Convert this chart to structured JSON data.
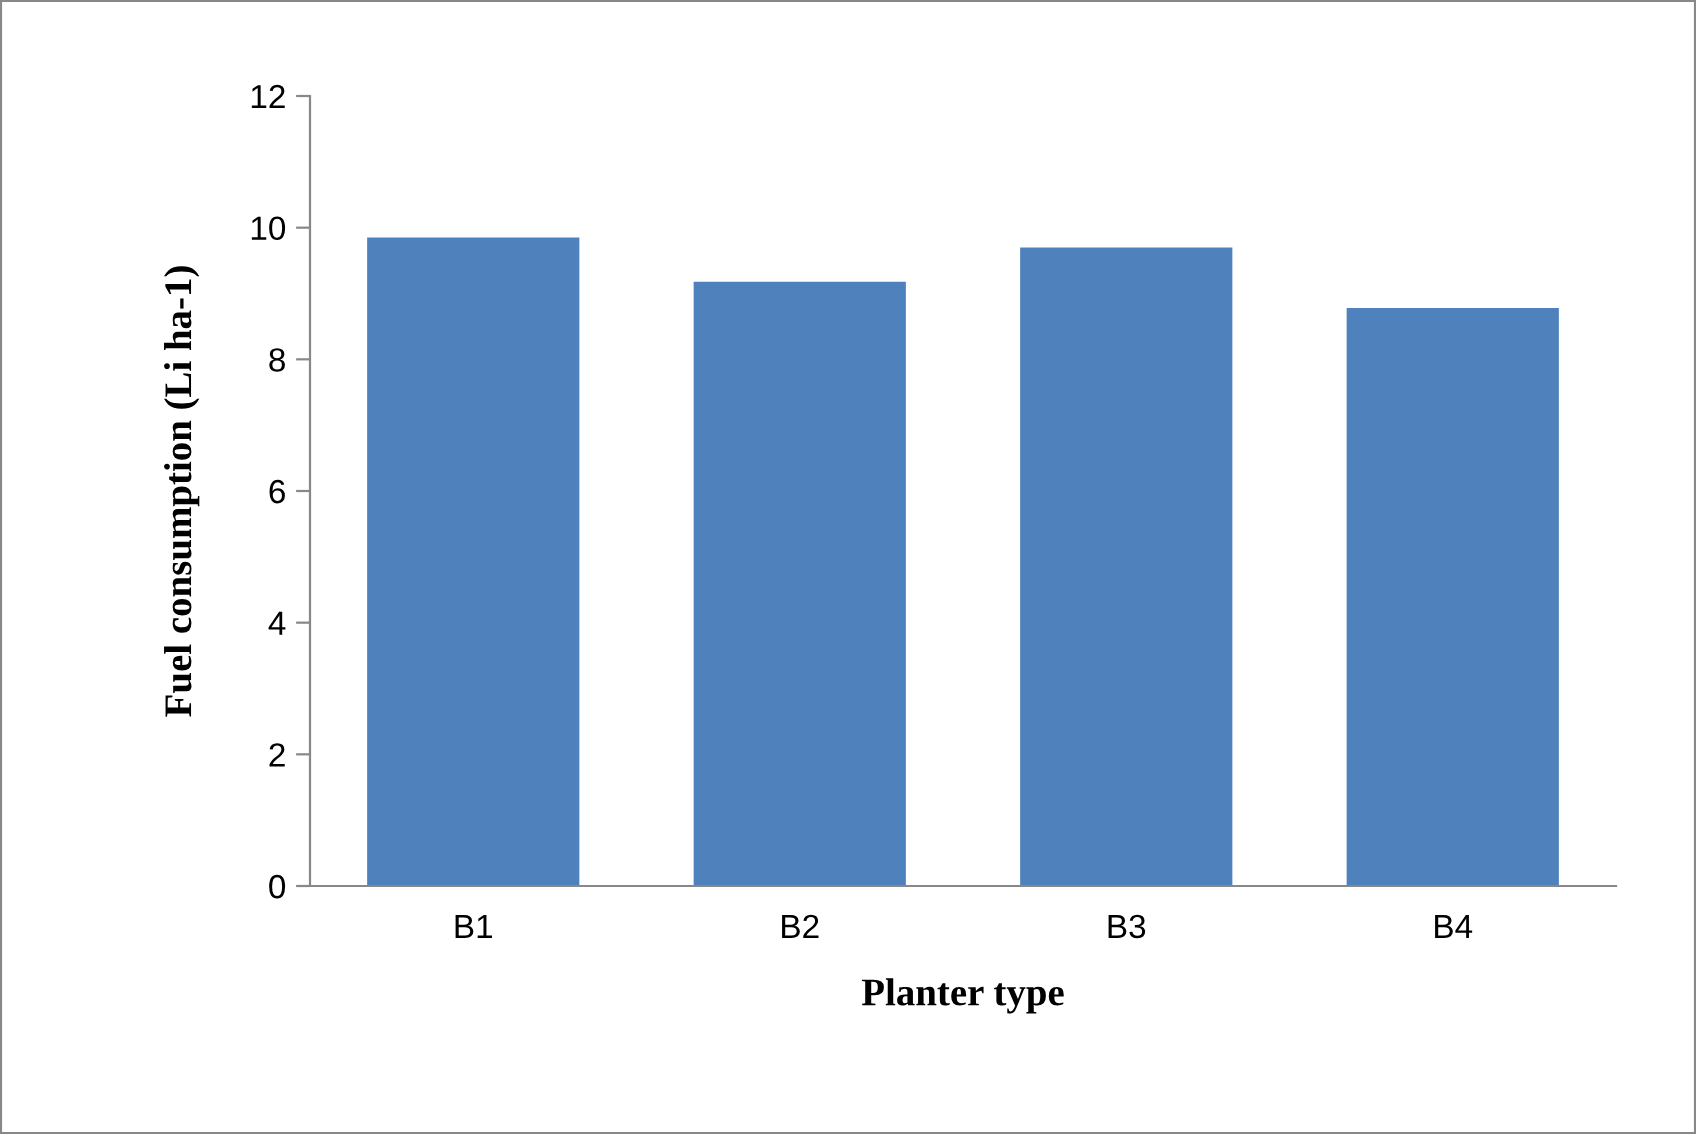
{
  "chart_data": {
    "type": "bar",
    "xlabel": "Planter type",
    "ylabel": "Fuel consumption (Li ha-1)",
    "categories": [
      "B1",
      "B2",
      "B3",
      "B4"
    ],
    "values": [
      9.85,
      9.18,
      9.7,
      8.78
    ],
    "color": "#4f81bd",
    "ylim": [
      0,
      12
    ],
    "yticks": [
      0,
      2,
      4,
      6,
      8,
      10,
      12
    ],
    "grid": false,
    "legend": false
  }
}
